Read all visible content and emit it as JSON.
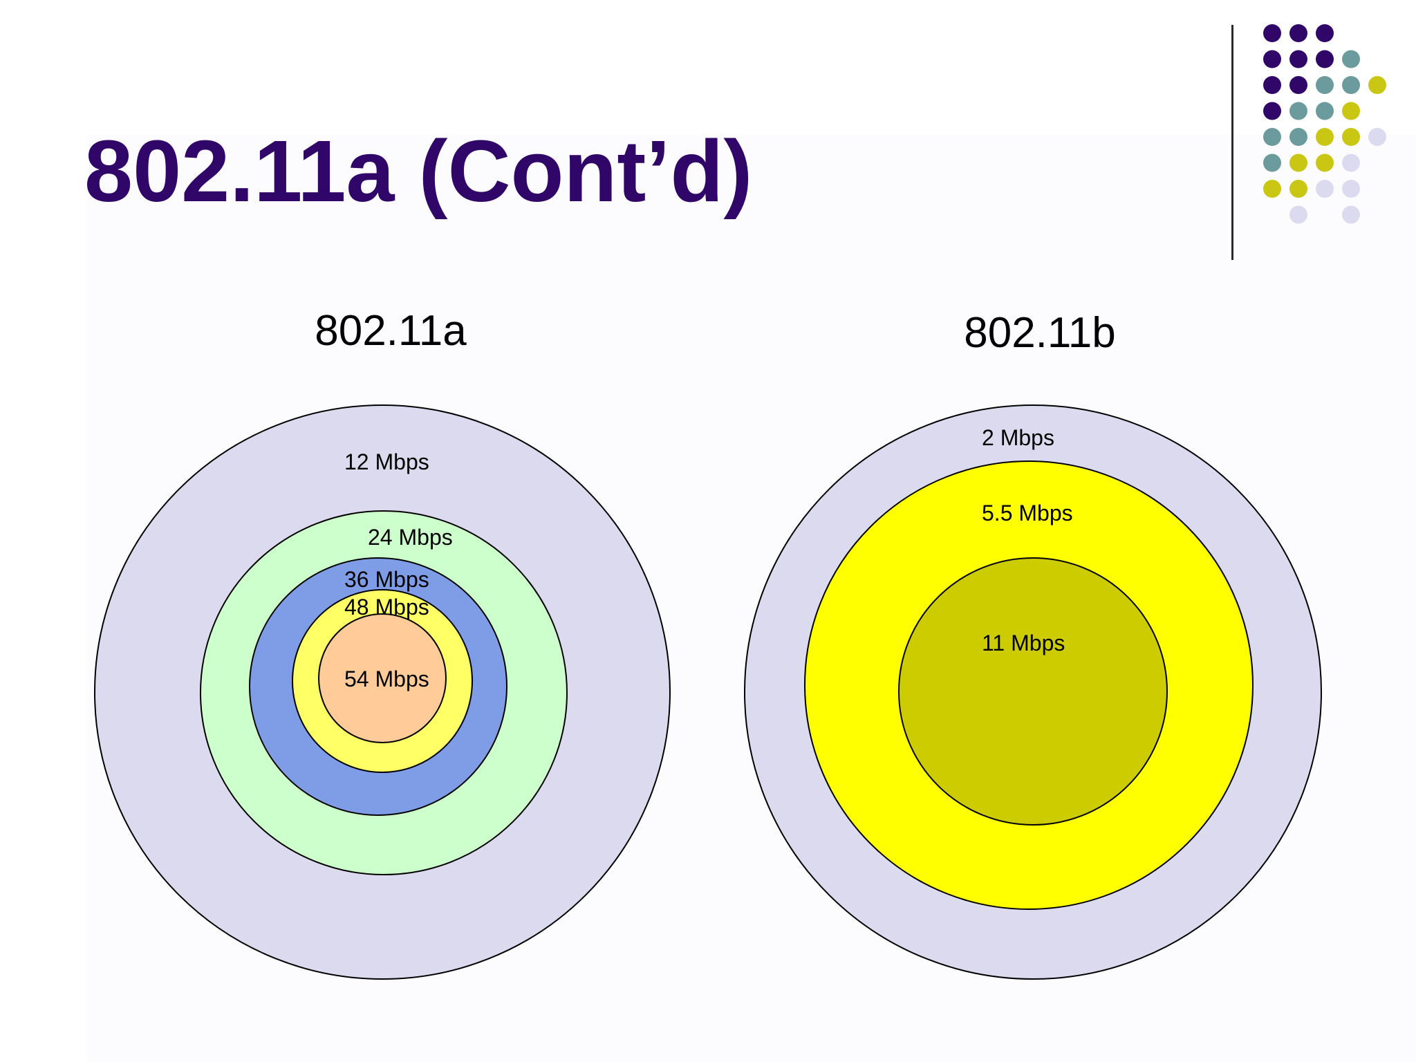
{
  "slide": {
    "title": "802.11a (Cont’d)",
    "colors": {
      "title": "#300769",
      "accent_purple": "#300769",
      "accent_teal": "#6b9b9c",
      "accent_yellow": "#c9c614",
      "accent_lavender": "#dcdaee"
    }
  },
  "decoration": {
    "dot_rows": [
      [
        "purple",
        "purple",
        "purple"
      ],
      [
        "purple",
        "purple",
        "purple",
        "teal"
      ],
      [
        "purple",
        "purple",
        "teal",
        "teal",
        "yellow"
      ],
      [
        "purple",
        "teal",
        "teal",
        "yellow"
      ],
      [
        "teal",
        "teal",
        "yellow",
        "yellow",
        "lavender"
      ],
      [
        "teal",
        "yellow",
        "yellow",
        "lavender"
      ],
      [
        "yellow",
        "yellow",
        "lavender",
        "lavender"
      ],
      [
        "",
        "lavender",
        "",
        "lavender"
      ]
    ]
  },
  "diagrams": [
    {
      "title": "802.11a",
      "rings": [
        {
          "label": "12 Mbps",
          "color": "#dcdaee"
        },
        {
          "label": "24 Mbps",
          "color": "#ccffcc"
        },
        {
          "label": "36 Mbps",
          "color": "#7e9de6"
        },
        {
          "label": "48 Mbps",
          "color": "#ffff66"
        },
        {
          "label": "54 Mbps",
          "color": "#ffcc99"
        }
      ]
    },
    {
      "title": "802.11b",
      "rings": [
        {
          "label": "2 Mbps",
          "color": "#dcdaee"
        },
        {
          "label": "5.5 Mbps",
          "color": "#ffff00"
        },
        {
          "label": "11 Mbps",
          "color": "#cccc00"
        }
      ]
    }
  ]
}
